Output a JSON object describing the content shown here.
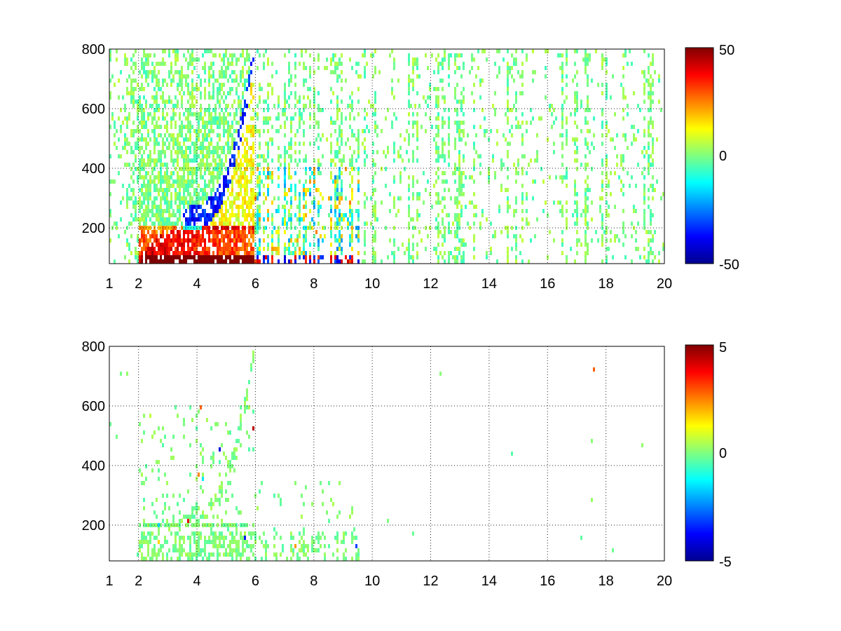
{
  "chart_data": [
    {
      "type": "heatmap",
      "title": "",
      "xlabel": "",
      "ylabel": "",
      "xlim": [
        1,
        20
      ],
      "ylim": [
        80,
        800
      ],
      "xticks": [
        "1",
        "2",
        "4",
        "6",
        "8",
        "10",
        "12",
        "14",
        "16",
        "18",
        "20"
      ],
      "yticks": [
        "200",
        "400",
        "600",
        "800"
      ],
      "grid": true,
      "colormap": "jet",
      "colorbar": {
        "clim": [
          -50,
          50
        ],
        "tick_labels": [
          "50",
          "0",
          "-50"
        ]
      },
      "description_of_values": "Dense values for x 1-10 (strong positive ~+50 near y 80-200 for x 2-6, negative ~-40 band curving from x 4 to 6, y 250-700); sparse near-zero speckle for x 10-20."
    },
    {
      "type": "heatmap",
      "title": "",
      "xlabel": "",
      "ylabel": "",
      "xlim": [
        1,
        20
      ],
      "ylim": [
        80,
        800
      ],
      "xticks": [
        "1",
        "2",
        "4",
        "6",
        "8",
        "10",
        "12",
        "14",
        "16",
        "18",
        "20"
      ],
      "yticks": [
        "200",
        "400",
        "600",
        "800"
      ],
      "grid": true,
      "colormap": "jet",
      "colorbar": {
        "clim": [
          -5,
          5
        ],
        "tick_labels": [
          "5",
          "0",
          "-5"
        ]
      },
      "description_of_values": "Mostly near-zero (light green) values for x 2-9.5, y 80-600, concentrated below y 200; essentially empty for x > 10."
    }
  ]
}
